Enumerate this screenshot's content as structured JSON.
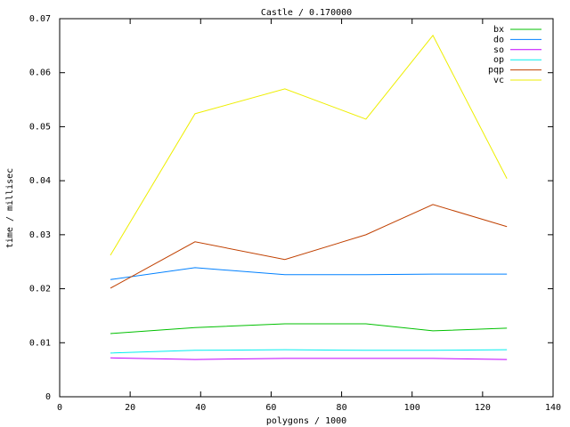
{
  "chart_data": {
    "type": "line",
    "title": "Castle / 0.170000",
    "x_label": "polygons / 1000",
    "y_label": "time / millisec",
    "x": [
      14.4,
      38.4,
      63.9,
      86.9,
      105.9,
      126.9
    ],
    "series": [
      {
        "name": "bx",
        "color": "#00c000",
        "values": [
          0.0117,
          0.0128,
          0.0135,
          0.0135,
          0.0122,
          0.0127
        ]
      },
      {
        "name": "do",
        "color": "#0080ff",
        "values": [
          0.0217,
          0.0239,
          0.0226,
          0.0226,
          0.0227,
          0.0227
        ]
      },
      {
        "name": "so",
        "color": "#c000ff",
        "values": [
          0.0072,
          0.0069,
          0.0071,
          0.0071,
          0.0071,
          0.0069
        ]
      },
      {
        "name": "op",
        "color": "#00eeee",
        "values": [
          0.0081,
          0.0086,
          0.0087,
          0.0086,
          0.0086,
          0.0087
        ]
      },
      {
        "name": "pqp",
        "color": "#c04000",
        "values": [
          0.0201,
          0.0287,
          0.0254,
          0.03,
          0.0356,
          0.0315
        ]
      },
      {
        "name": "vc",
        "color": "#eeee00",
        "values": [
          0.0262,
          0.0524,
          0.057,
          0.0514,
          0.0669,
          0.0404
        ]
      }
    ],
    "xlim": [
      0,
      140
    ],
    "xticks": [
      0,
      20,
      40,
      60,
      80,
      100,
      120,
      140
    ],
    "ylim": [
      0,
      0.07
    ],
    "yticks": [
      0,
      0.01,
      0.02,
      0.03,
      0.04,
      0.05,
      0.06,
      0.07
    ],
    "grid": false,
    "legend": "top-right"
  }
}
